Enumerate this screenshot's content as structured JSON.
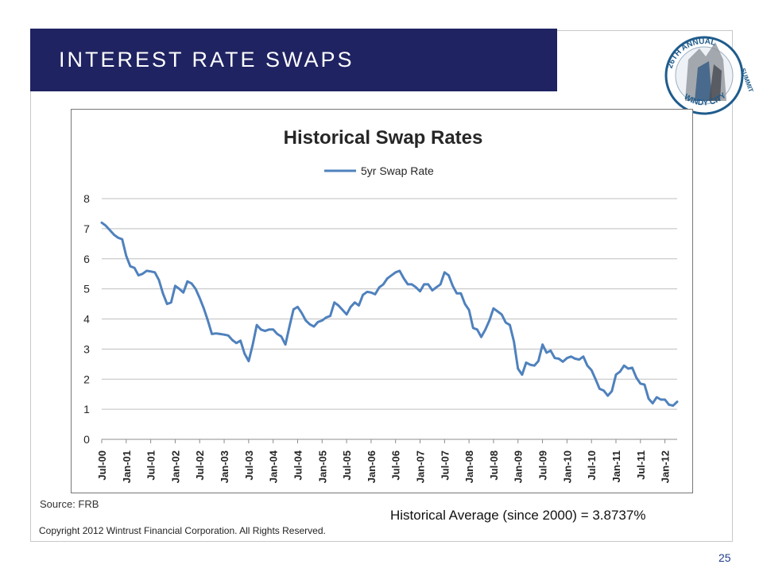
{
  "slide": {
    "title": "INTEREST RATE SWAPS",
    "source": "Source:  FRB",
    "historical_average": "Historical Average (since 2000) = 3.8737%",
    "copyright": "Copyright 2012 Wintrust Financial Corporation. All Rights Reserved.",
    "page_number": "25"
  },
  "logo": {
    "text_top": "26TH ANNUAL",
    "text_bottom": "WINDY CITY",
    "text_right": "SUMMIT"
  },
  "colors": {
    "title_bar": "#1f2362",
    "series_line": "#4f81bd",
    "gridline": "#bfbfbf",
    "logo_accent": "#1f5c8c"
  },
  "chart_data": {
    "type": "line",
    "title": "Historical Swap Rates",
    "xlabel": "",
    "ylabel": "",
    "ylim": [
      0,
      8
    ],
    "yticks": [
      0,
      1,
      2,
      3,
      4,
      5,
      6,
      7,
      8
    ],
    "grid": true,
    "legend": "top-center",
    "x_tick_labels": [
      "Jul-00",
      "Jan-01",
      "Jul-01",
      "Jan-02",
      "Jul-02",
      "Jan-03",
      "Jul-03",
      "Jan-04",
      "Jul-04",
      "Jan-05",
      "Jul-05",
      "Jan-06",
      "Jul-06",
      "Jan-07",
      "Jul-07",
      "Jan-08",
      "Jul-08",
      "Jan-09",
      "Jul-09",
      "Jan-10",
      "Jul-10",
      "Jan-11",
      "Jul-11",
      "Jan-12"
    ],
    "series": [
      {
        "name": "5yr Swap Rate",
        "start": "Jul-00",
        "frequency": "monthly",
        "values": [
          7.2,
          7.1,
          6.95,
          6.8,
          6.7,
          6.65,
          6.1,
          5.75,
          5.7,
          5.45,
          5.5,
          5.6,
          5.58,
          5.55,
          5.3,
          4.85,
          4.5,
          4.55,
          5.1,
          5.0,
          4.88,
          5.25,
          5.18,
          5.0,
          4.7,
          4.35,
          3.95,
          3.5,
          3.52,
          3.5,
          3.48,
          3.45,
          3.3,
          3.2,
          3.28,
          2.85,
          2.6,
          3.15,
          3.8,
          3.65,
          3.6,
          3.65,
          3.65,
          3.5,
          3.42,
          3.15,
          3.75,
          4.32,
          4.4,
          4.2,
          3.95,
          3.82,
          3.75,
          3.9,
          3.95,
          4.05,
          4.1,
          4.55,
          4.45,
          4.3,
          4.15,
          4.4,
          4.55,
          4.45,
          4.8,
          4.9,
          4.88,
          4.82,
          5.05,
          5.15,
          5.35,
          5.45,
          5.55,
          5.6,
          5.35,
          5.15,
          5.15,
          5.05,
          4.92,
          5.15,
          5.15,
          4.95,
          5.05,
          5.15,
          5.55,
          5.45,
          5.1,
          4.85,
          4.85,
          4.5,
          4.3,
          3.7,
          3.65,
          3.4,
          3.65,
          3.95,
          4.35,
          4.25,
          4.15,
          3.88,
          3.8,
          3.25,
          2.35,
          2.15,
          2.55,
          2.48,
          2.45,
          2.6,
          3.15,
          2.88,
          2.95,
          2.7,
          2.68,
          2.58,
          2.7,
          2.75,
          2.68,
          2.65,
          2.75,
          2.45,
          2.3,
          2.0,
          1.68,
          1.62,
          1.45,
          1.6,
          2.15,
          2.25,
          2.45,
          2.35,
          2.38,
          2.05,
          1.85,
          1.82,
          1.35,
          1.2,
          1.4,
          1.32,
          1.32,
          1.15,
          1.12,
          1.25
        ]
      }
    ]
  }
}
